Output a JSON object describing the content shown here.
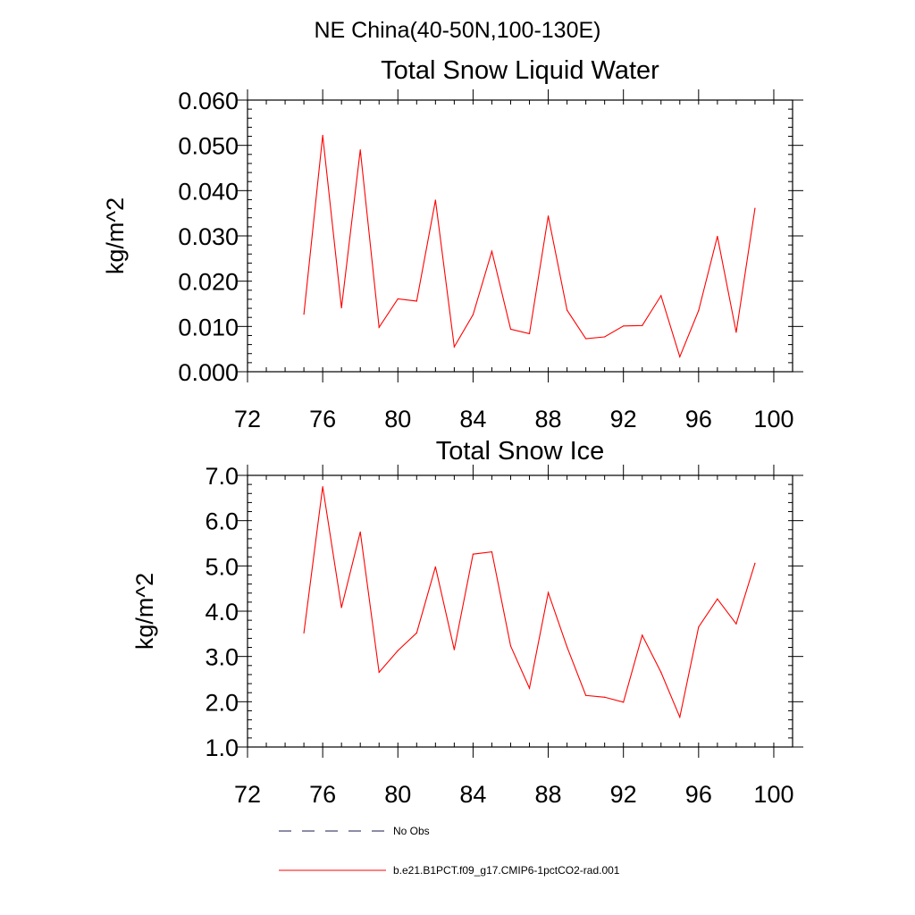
{
  "page_title": "NE China(40-50N,100-130E)",
  "colors": {
    "series": "#ff0000",
    "no_obs": "#1a1a4d",
    "axis": "#000000"
  },
  "legend": [
    {
      "label": "No Obs",
      "style": "dashed",
      "color": "#1a1a4d"
    },
    {
      "label": "b.e21.B1PCT.f09_g17.CMIP6-1pctCO2-rad.001",
      "style": "solid",
      "color": "#ff0000"
    }
  ],
  "chart_data": [
    {
      "type": "line",
      "title": "Total Snow Liquid Water",
      "xlabel": "",
      "ylabel": "kg/m^2",
      "xlim": [
        72,
        101
      ],
      "ylim": [
        0.0,
        0.06
      ],
      "x_ticks": [
        72,
        76,
        80,
        84,
        88,
        92,
        96,
        100
      ],
      "y_ticks": [
        0.0,
        0.01,
        0.02,
        0.03,
        0.04,
        0.05,
        0.06
      ],
      "y_tick_labels": [
        "0.000",
        "0.010",
        "0.020",
        "0.030",
        "0.040",
        "0.050",
        "0.060"
      ],
      "grid": false,
      "series": [
        {
          "x": [
            75,
            76,
            77,
            78,
            79,
            80,
            81,
            82,
            83,
            84,
            85,
            86,
            87,
            88,
            89,
            90,
            91,
            92,
            93,
            94,
            95,
            96,
            97,
            98,
            99
          ],
          "y": [
            0.0127,
            0.0522,
            0.0141,
            0.049,
            0.0098,
            0.0161,
            0.0156,
            0.0379,
            0.0055,
            0.0126,
            0.0266,
            0.0094,
            0.0084,
            0.0344,
            0.0136,
            0.0073,
            0.0077,
            0.0101,
            0.0102,
            0.0168,
            0.0033,
            0.0135,
            0.0299,
            0.0087,
            0.0361
          ]
        }
      ]
    },
    {
      "type": "line",
      "title": "Total Snow Ice",
      "xlabel": "",
      "ylabel": "kg/m^2",
      "xlim": [
        72,
        101
      ],
      "ylim": [
        1.0,
        7.0
      ],
      "x_ticks": [
        72,
        76,
        80,
        84,
        88,
        92,
        96,
        100
      ],
      "y_ticks": [
        1.0,
        2.0,
        3.0,
        4.0,
        5.0,
        6.0,
        7.0
      ],
      "y_tick_labels": [
        "1.0",
        "2.0",
        "3.0",
        "4.0",
        "5.0",
        "6.0",
        "7.0"
      ],
      "grid": false,
      "series": [
        {
          "x": [
            75,
            76,
            77,
            78,
            79,
            80,
            81,
            82,
            83,
            84,
            85,
            86,
            87,
            88,
            89,
            90,
            91,
            92,
            93,
            94,
            95,
            96,
            97,
            98,
            99
          ],
          "y": [
            3.52,
            6.75,
            4.08,
            5.75,
            2.65,
            3.13,
            3.52,
            4.98,
            3.15,
            5.26,
            5.31,
            3.23,
            2.3,
            4.41,
            3.21,
            2.14,
            2.1,
            1.99,
            3.47,
            2.65,
            1.66,
            3.65,
            4.27,
            3.72,
            5.06
          ]
        }
      ]
    }
  ]
}
